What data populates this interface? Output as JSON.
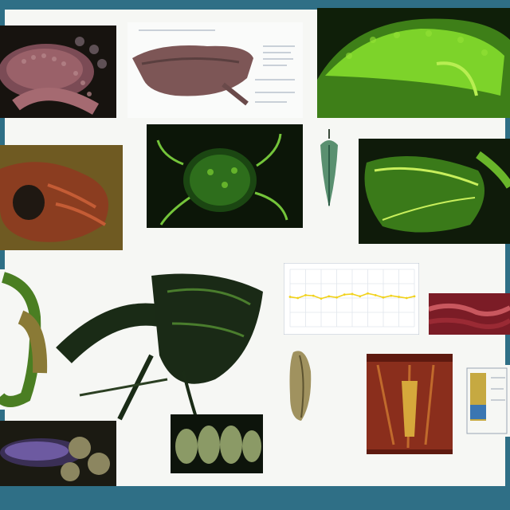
{
  "title": "",
  "colors": {
    "frame": "#2f6f86",
    "background": "#f6f7f4",
    "leaf_green": "#7dd32a",
    "moss": "#244d16",
    "reptile_pink": "#9a6169",
    "rust": "#8a2e1c"
  },
  "panels": [
    {
      "id": "reptile-photo",
      "icon": "lizard-specimen"
    },
    {
      "id": "turtle-diagram",
      "icon": "turtle-specimen"
    },
    {
      "id": "green-fern-specimen",
      "icon": "fern-specimen"
    },
    {
      "id": "moss-specimen",
      "icon": "moss-specimen"
    },
    {
      "id": "hydra-specimen",
      "icon": "hydra-specimen"
    },
    {
      "id": "seed-pod-specimen",
      "icon": "seed-pod"
    },
    {
      "id": "leaf-anatomy-specimen",
      "icon": "leaf-anatomy"
    },
    {
      "id": "coiled-larva-specimen",
      "icon": "larva-specimen"
    },
    {
      "id": "winged-insect-specimen",
      "icon": "insect-specimen"
    },
    {
      "id": "line-chart",
      "icon": "chart"
    },
    {
      "id": "red-tissue-specimen",
      "icon": "tissue"
    },
    {
      "id": "capsule-specimen",
      "icon": "capsule"
    },
    {
      "id": "cross-section-specimen",
      "icon": "cross-section"
    },
    {
      "id": "blue-column-specimen",
      "icon": "column"
    },
    {
      "id": "purple-slug-specimen",
      "icon": "slug"
    },
    {
      "id": "lichen-pods-specimen",
      "icon": "lichen"
    }
  ],
  "chart_data": {
    "type": "line",
    "title": "",
    "xlabel": "",
    "ylabel": "",
    "x": [
      0,
      1,
      2,
      3,
      4,
      5,
      6,
      7,
      8,
      9,
      10,
      11,
      12,
      13,
      14,
      15,
      16
    ],
    "series": [
      {
        "values": [
          52,
          50,
          55,
          54,
          49,
          53,
          51,
          56,
          57,
          53,
          58,
          55,
          51,
          54,
          52,
          50,
          53
        ],
        "color": "#f1d21b"
      }
    ],
    "ylim": [
      0,
      100
    ],
    "grid": true
  }
}
